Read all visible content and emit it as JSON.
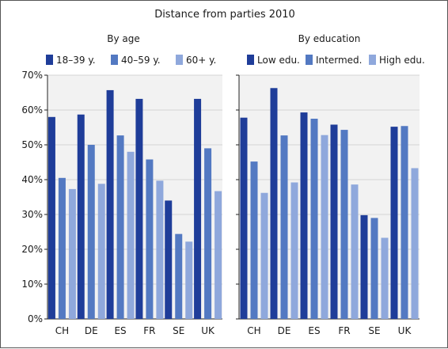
{
  "chart_data": {
    "type": "bar",
    "title": "Distance from parties 2010",
    "ylim": [
      0,
      70
    ],
    "yticks": [
      "0%",
      "10%",
      "20%",
      "30%",
      "40%",
      "50%",
      "60%",
      "70%"
    ],
    "grid": true,
    "panels": [
      {
        "subtitle": "By age",
        "categories": [
          "CH",
          "DE",
          "ES",
          "FR",
          "SE",
          "UK"
        ],
        "series": [
          {
            "name": "18–39 y.",
            "color": "#1f3d99",
            "values": [
              58,
              58.7,
              65.7,
              63.2,
              34,
              63.2
            ]
          },
          {
            "name": "40–59 y.",
            "color": "#5379c2",
            "values": [
              40.5,
              50,
              52.7,
              45.8,
              24.4,
              49
            ]
          },
          {
            "name": "60+ y.",
            "color": "#8fa8dc",
            "values": [
              37.3,
              38.8,
              48,
              39.7,
              22.2,
              36.7
            ]
          }
        ]
      },
      {
        "subtitle": "By education",
        "categories": [
          "CH",
          "DE",
          "ES",
          "FR",
          "SE",
          "UK"
        ],
        "series": [
          {
            "name": "Low edu.",
            "color": "#1f3d99",
            "values": [
              57.8,
              66.3,
              59.3,
              55.8,
              29.8,
              55.2
            ]
          },
          {
            "name": "Intermed.",
            "color": "#5379c2",
            "values": [
              45.2,
              52.7,
              57.5,
              54.3,
              29,
              55.4
            ]
          },
          {
            "name": "High edu.",
            "color": "#8fa8dc",
            "values": [
              36.2,
              39.2,
              52.8,
              38.6,
              23.3,
              43.3
            ]
          }
        ]
      }
    ]
  }
}
